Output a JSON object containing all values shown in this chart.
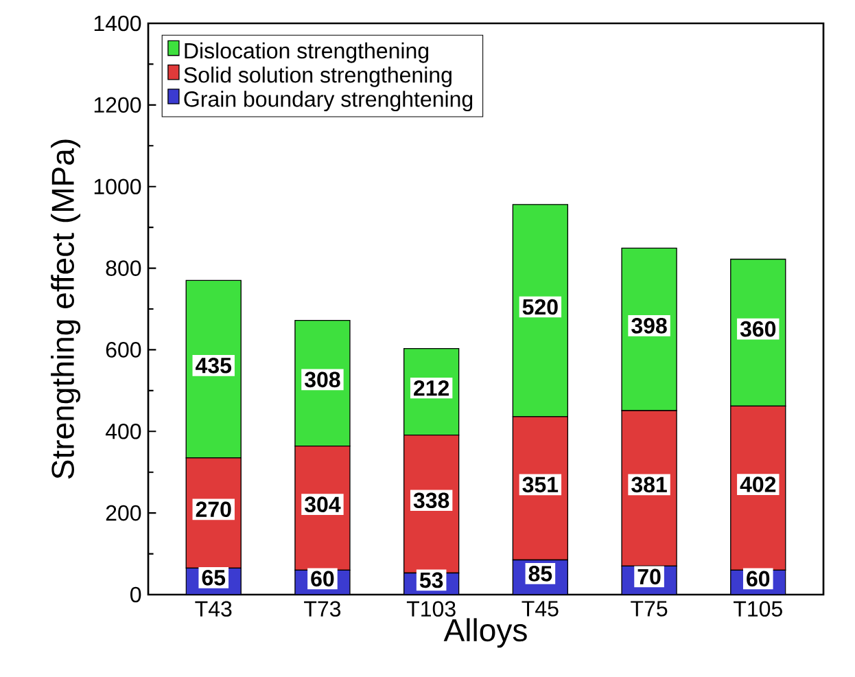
{
  "chart_data": {
    "type": "bar",
    "stacked": true,
    "xlabel": "Alloys",
    "ylabel": "Strengthing effect (MPa)",
    "categories": [
      "T43",
      "T73",
      "T103",
      "T45",
      "T75",
      "T105"
    ],
    "series": [
      {
        "name": "Grain boundary strenghtening",
        "color": "#3b3bd0",
        "values": [
          65,
          60,
          53,
          85,
          70,
          60
        ]
      },
      {
        "name": "Solid solution strengthening",
        "color": "#e03a3a",
        "values": [
          270,
          304,
          338,
          351,
          381,
          402
        ]
      },
      {
        "name": "Dislocation strengthening",
        "color": "#3ee03e",
        "values": [
          435,
          308,
          212,
          520,
          398,
          360
        ]
      }
    ],
    "ylim": [
      0,
      1400
    ],
    "yticks": [
      0,
      200,
      400,
      600,
      800,
      1000,
      1200,
      1400
    ],
    "data_labels": true,
    "legend": "top left",
    "grid": false
  }
}
